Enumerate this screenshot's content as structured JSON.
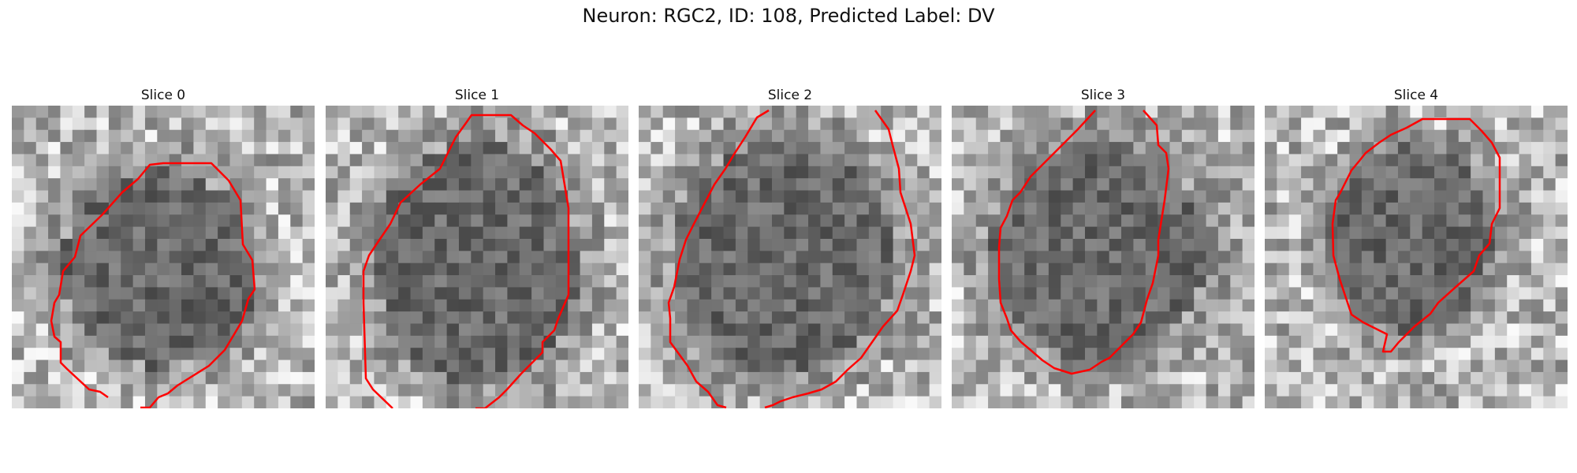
{
  "figure": {
    "title": "Neuron: RGC2, ID: 108, Predicted Label: DV"
  },
  "panels": [
    {
      "label": "Slice 0"
    },
    {
      "label": "Slice 1"
    },
    {
      "label": "Slice 2"
    },
    {
      "label": "Slice 3"
    },
    {
      "label": "Slice 4"
    }
  ],
  "colors": {
    "contour": "#ff0000",
    "background": "#ffffff"
  },
  "image": {
    "colormap": "grayscale",
    "content": "noisy grayscale microscopy patch with dark cell body"
  }
}
